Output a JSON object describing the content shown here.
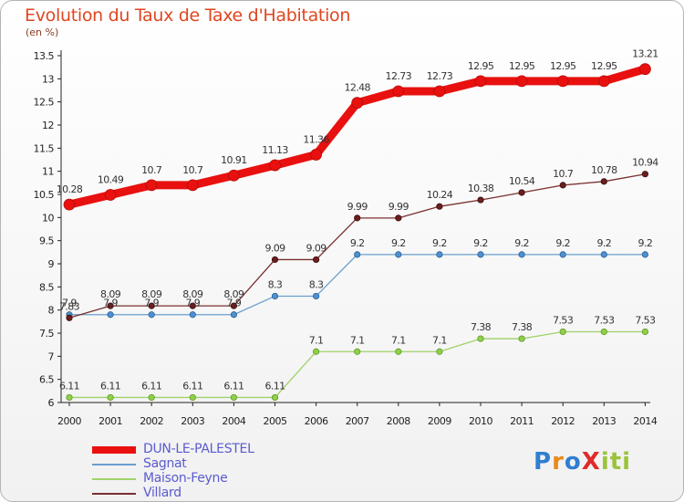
{
  "page": {
    "title": "Evolution du Taux de Taxe d'Habitation",
    "subtitle": "(en %)",
    "brand": "ProXiti"
  },
  "chart_data": {
    "type": "line",
    "title": "Evolution du Taux de Taxe d'Habitation",
    "subtitle": "(en %)",
    "xlabel": "",
    "ylabel": "",
    "x": [
      2000,
      2001,
      2002,
      2003,
      2004,
      2005,
      2006,
      2007,
      2008,
      2009,
      2010,
      2011,
      2012,
      2013,
      2014
    ],
    "ylim": [
      6,
      13.5
    ],
    "ytick_labels": [
      "6",
      "6.5",
      "7",
      "7.5",
      "8",
      "8.5",
      "9",
      "9.5",
      "10",
      "10.5",
      "11",
      "11.5",
      "12",
      "12.5",
      "13",
      "13.5"
    ],
    "grid": false,
    "legend_position": "bottom-left",
    "series": [
      {
        "name": "DUN-LE-PALESTEL",
        "color": "#e8110f",
        "values": [
          10.28,
          10.49,
          10.7,
          10.7,
          10.91,
          11.13,
          11.36,
          12.48,
          12.73,
          12.73,
          12.95,
          12.95,
          12.95,
          12.95,
          13.21
        ],
        "labels": [
          "10.28",
          "10.49",
          "10.7",
          "10.7",
          "10.91",
          "11.13",
          "11.36",
          "12.48",
          "12.73",
          "12.73",
          "12.95",
          "12.95",
          "12.95",
          "12.95",
          "13.21"
        ]
      },
      {
        "name": "Sagnat",
        "color": "#6a9fcf",
        "values": [
          7.9,
          7.9,
          7.9,
          7.9,
          7.9,
          8.3,
          8.3,
          9.2,
          9.2,
          9.2,
          9.2,
          9.2,
          9.2,
          9.2,
          9.2
        ],
        "labels": [
          "7.9",
          "7.9",
          "7.9",
          "7.9",
          "7.9",
          "8.3",
          "8.3",
          "9.2",
          "9.2",
          "9.2",
          "9.2",
          "9.2",
          "9.2",
          "9.2",
          "9.2"
        ]
      },
      {
        "name": "Maison-Feyne",
        "color": "#9fd26a",
        "values": [
          6.11,
          6.11,
          6.11,
          6.11,
          6.11,
          6.11,
          7.1,
          7.1,
          7.1,
          7.1,
          7.38,
          7.38,
          7.53,
          7.53,
          7.53
        ],
        "labels": [
          "6.11",
          "6.11",
          "6.11",
          "6.11",
          "6.11",
          "6.11",
          "7.1",
          "7.1",
          "7.1",
          "7.1",
          "7.38",
          "7.38",
          "7.53",
          "7.53",
          "7.53"
        ]
      },
      {
        "name": "Villard",
        "color": "#7a2f2f",
        "values": [
          7.83,
          8.09,
          8.09,
          8.09,
          8.09,
          9.09,
          9.09,
          9.99,
          9.99,
          10.24,
          10.38,
          10.54,
          10.7,
          10.78,
          10.94
        ],
        "labels": [
          "7.83",
          "8.09",
          "8.09",
          "8.09",
          "8.09",
          "9.09",
          "9.09",
          "9.99",
          "9.99",
          "10.24",
          "10.38",
          "10.54",
          "10.7",
          "10.78",
          "10.94"
        ]
      }
    ]
  }
}
